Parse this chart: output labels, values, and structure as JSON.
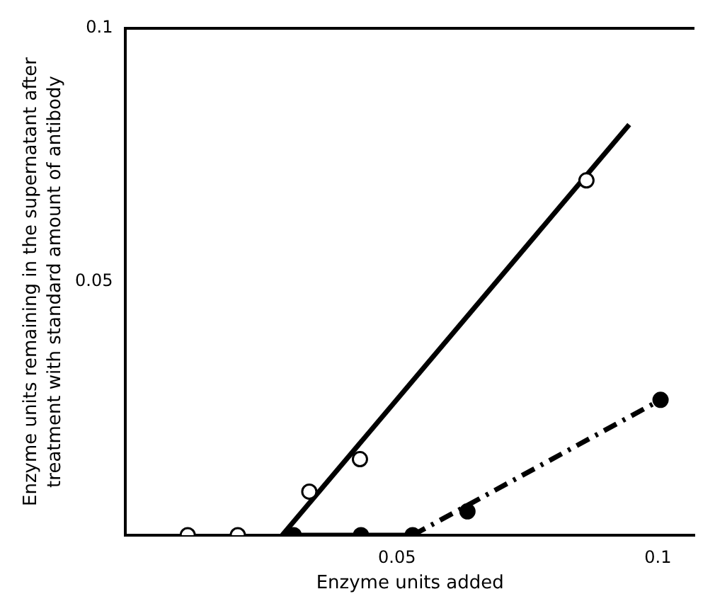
{
  "chart_data": {
    "type": "scatter",
    "xlabel": "Enzyme units added",
    "ylabel": "Enzyme units remaining in the supernatant after treatment with standard amount of antibody",
    "xlim": [
      -0.002,
      0.107
    ],
    "xticks": [
      0.05,
      0.1
    ],
    "ylim": [
      0,
      0.1
    ],
    "yticks": [
      0.05,
      0.1
    ],
    "grid": false,
    "legend": false,
    "series": [
      {
        "type": "line",
        "color": "#000000",
        "x": [
          0.028,
          0.0945
        ],
        "values": [
          0,
          0.081
        ],
        "line_style": "solid",
        "marker": "none"
      },
      {
        "type": "line",
        "color": "#000000",
        "x": [
          0.028,
          0.053
        ],
        "values": [
          0,
          0
        ],
        "line_style": "solid",
        "marker": "none"
      },
      {
        "type": "line",
        "color": "#000000",
        "x": [
          0.053,
          0.1005
        ],
        "values": [
          0,
          0.0267
        ],
        "line_style": "dashed",
        "marker": "none"
      },
      {
        "color": "#ffffff",
        "x": [
          0.0099,
          0.0195,
          0.0332,
          0.0429,
          0.0863
        ],
        "values": [
          0,
          0,
          0.0086,
          0.015,
          0.07
        ],
        "marker": "circle"
      },
      {
        "color": "#000000",
        "x": [
          0.0302,
          0.0431,
          0.053,
          0.0635,
          0.1005
        ],
        "values": [
          0,
          0,
          0,
          0.0047,
          0.0267
        ],
        "marker": "circle"
      }
    ]
  }
}
